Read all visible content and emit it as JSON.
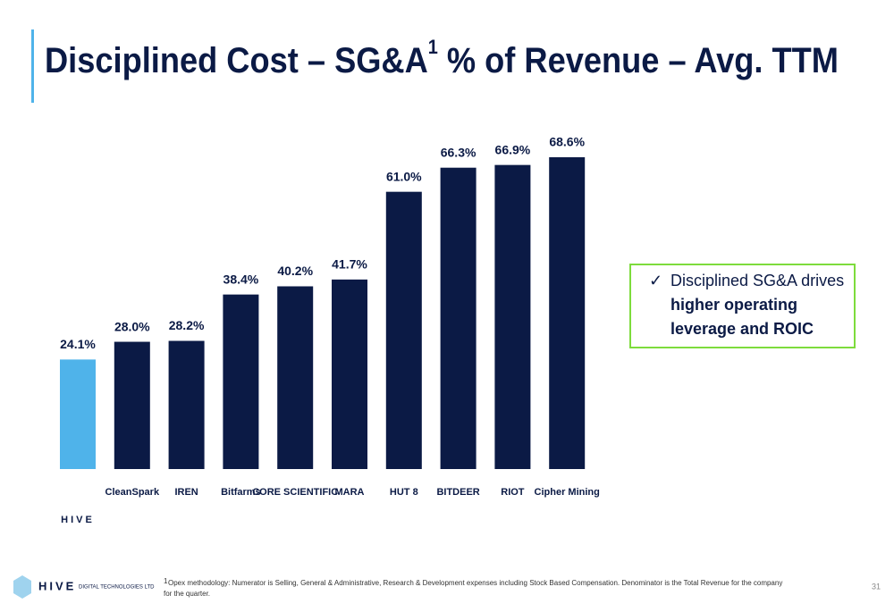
{
  "header": {
    "title_start": "Disciplined Cost – SG&A",
    "footnote_mark": "1",
    "title_end": " % of Revenue – Avg. TTM"
  },
  "chart_data": {
    "type": "bar",
    "categories": [
      "HIVE",
      "CleanSpark",
      "IREN",
      "Bitfarms",
      "CORE SCIENTIFIC",
      "MARA",
      "HUT 8",
      "BITDEER",
      "RIOT",
      "Cipher Mining"
    ],
    "values": [
      24.1,
      28.0,
      28.2,
      38.4,
      40.2,
      41.7,
      61.0,
      66.3,
      66.9,
      68.6
    ],
    "value_labels": [
      "24.1%",
      "28.0%",
      "28.2%",
      "38.4%",
      "40.2%",
      "41.7%",
      "61.0%",
      "66.3%",
      "66.9%",
      "68.6%"
    ],
    "colors": [
      "#4fb3ea",
      "#0b1a45",
      "#0b1a45",
      "#0b1a45",
      "#0b1a45",
      "#0b1a45",
      "#0b1a45",
      "#0b1a45",
      "#0b1a45",
      "#0b1a45"
    ]
  },
  "callout": {
    "check": "✓",
    "line1": "Disciplined SG&A drives",
    "line2": "higher operating",
    "line3": "leverage and ROIC"
  },
  "footnote": {
    "mark": "1",
    "line1": "Opex methodology: Numerator is Selling, General & Administrative, Research & Development expenses including Stock Based Compensation. Denominator is the Total Revenue for the company",
    "line2": "for the quarter."
  },
  "footer": {
    "logo": "HIVE",
    "company": "DIGITAL TECHNOLOGIES LTD",
    "page": "31"
  }
}
